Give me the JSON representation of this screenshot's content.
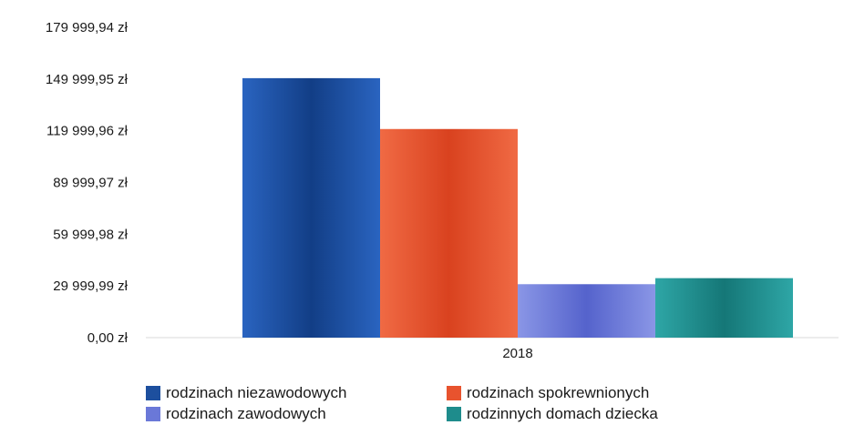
{
  "chart_data": {
    "type": "bar",
    "categories": [
      "2018"
    ],
    "series": [
      {
        "name": "rodzinach niezawodowych",
        "values": [
          150500
        ],
        "color": "#1d4f9e"
      },
      {
        "name": "rodzinach spokrewnionych",
        "values": [
          121000
        ],
        "color": "#e8532e"
      },
      {
        "name": "rodzinach zawodowych",
        "values": [
          31000
        ],
        "color": "#6a78d8"
      },
      {
        "name": "rodzinnych domach dziecka",
        "values": [
          34500
        ],
        "color": "#1e8c8c"
      }
    ],
    "y_ticks": [
      "0,00 zł",
      "29 999,99 zł",
      "59 999,98 zł",
      "89 999,97 zł",
      "119 999,96 zł",
      "149 999,95 zł",
      "179 999,94 zł"
    ],
    "ylim": [
      0,
      179999.94
    ],
    "xlabel": "",
    "ylabel": "",
    "title": "",
    "grid": false,
    "legend_position": "bottom"
  }
}
